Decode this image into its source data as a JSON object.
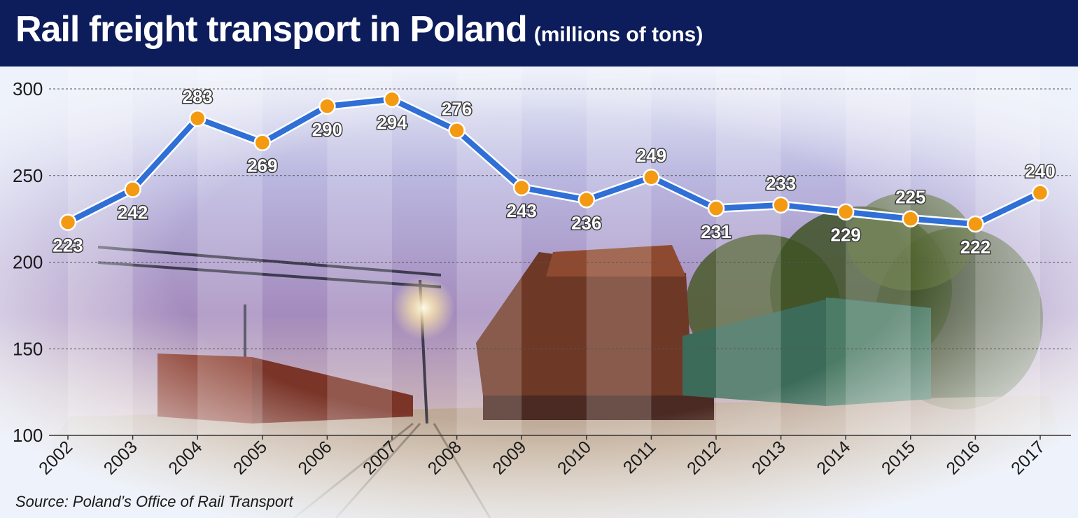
{
  "header": {
    "title": "Rail freight transport in Poland",
    "subtitle": "(millions of tons)"
  },
  "source": "Source: Poland’s Office of Rail Transport",
  "colors": {
    "header_bg": "#0d1c5a",
    "line": "#2f6fd6",
    "marker": "#f39a12",
    "marker_stroke": "#ffffff"
  },
  "chart_data": {
    "type": "line",
    "title": "Rail freight transport in Poland",
    "subtitle": "(millions of tons)",
    "xlabel": "",
    "ylabel": "",
    "categories": [
      "2002",
      "2003",
      "2004",
      "2005",
      "2006",
      "2007",
      "2008",
      "2009",
      "2010",
      "2011",
      "2012",
      "2013",
      "2014",
      "2015",
      "2016",
      "2017"
    ],
    "values": [
      223,
      242,
      283,
      269,
      290,
      294,
      276,
      243,
      236,
      249,
      231,
      233,
      229,
      225,
      222,
      240
    ],
    "ylim": [
      100,
      300
    ],
    "yticks": [
      100,
      150,
      200,
      250,
      300
    ],
    "grid": true,
    "data_label_position": [
      "below",
      "below",
      "above",
      "below",
      "below",
      "below",
      "above",
      "below",
      "below",
      "above",
      "below",
      "above",
      "below",
      "above",
      "below",
      "above"
    ]
  }
}
